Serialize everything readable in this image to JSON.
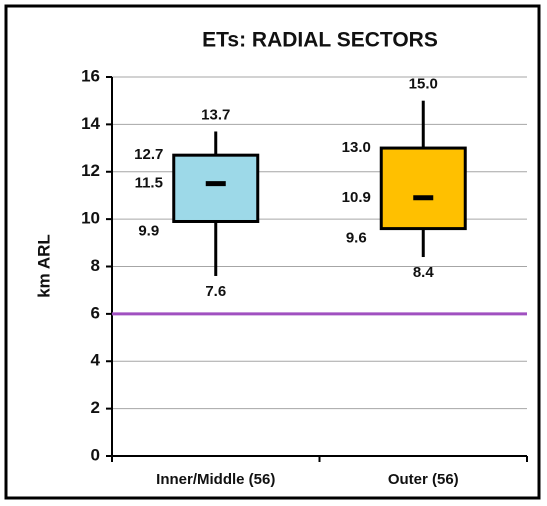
{
  "chart_data": {
    "type": "box",
    "title": "ETs: RADIAL SECTORS",
    "ylabel": "km ARL",
    "categories": [
      "Inner/Middle (56)",
      "Outer (56)"
    ],
    "boxes": [
      {
        "values": [
          7.6,
          9.9,
          11.5,
          12.7,
          13.7
        ],
        "value_labels": [
          "7.6",
          "9.9",
          "11.5",
          "12.7",
          "13.7"
        ],
        "color": "#9dd9e8"
      },
      {
        "values": [
          8.4,
          9.6,
          10.9,
          13.0,
          15.0
        ],
        "value_labels": [
          "8.4",
          "9.6",
          "10.9",
          "13.0",
          "15.0"
        ],
        "color": "#ffc000"
      }
    ],
    "reference_line": {
      "value": 6,
      "color": "#a050c0"
    },
    "ylim": [
      0,
      16
    ],
    "yticks": [
      0,
      2,
      4,
      6,
      8,
      10,
      12,
      14,
      16
    ],
    "grid": true
  }
}
